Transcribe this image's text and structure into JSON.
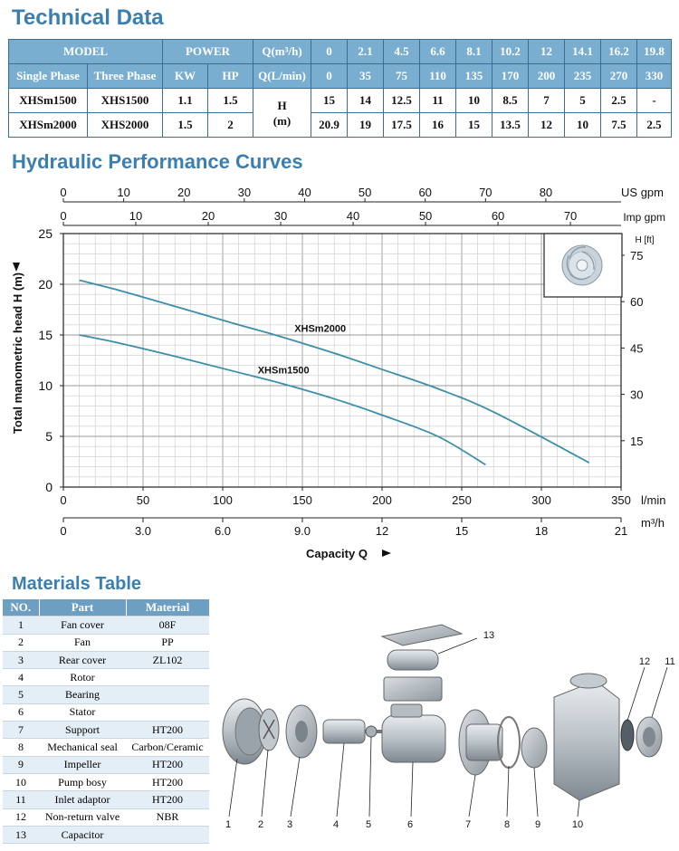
{
  "tech": {
    "title": "Technical Data",
    "header1": {
      "model": "MODEL",
      "power": "POWER",
      "q_m3h": "Q(m³/h)",
      "flows": [
        "0",
        "2.1",
        "4.5",
        "6.6",
        "8.1",
        "10.2",
        "12",
        "14.1",
        "16.2",
        "19.8"
      ]
    },
    "header2": {
      "single": "Single Phase",
      "three": "Three Phase",
      "kw": "KW",
      "hp": "HP",
      "q_lmin": "Q(L/min)",
      "flows": [
        "0",
        "35",
        "75",
        "110",
        "135",
        "170",
        "200",
        "235",
        "270",
        "330"
      ]
    },
    "head_label": "H",
    "head_unit": "(m)",
    "rows": [
      {
        "single": "XHSm1500",
        "three": "XHS1500",
        "kw": "1.1",
        "hp": "1.5",
        "heads": [
          "15",
          "14",
          "12.5",
          "11",
          "10",
          "8.5",
          "7",
          "5",
          "2.5",
          "-"
        ]
      },
      {
        "single": "XHSm2000",
        "three": "XHS2000",
        "kw": "1.5",
        "hp": "2",
        "heads": [
          "20.9",
          "19",
          "17.5",
          "16",
          "15",
          "13.5",
          "12",
          "10",
          "7.5",
          "2.5"
        ]
      }
    ]
  },
  "hydraulic": {
    "title": "Hydraulic Performance Curves"
  },
  "chart_data": {
    "type": "line",
    "title": "",
    "xlabel": "Capacity Q",
    "ylabel": "Total manometric head H (m)",
    "xlim": [
      0,
      350
    ],
    "ylim": [
      0,
      25
    ],
    "grid": true,
    "x_unit": "l/min",
    "x_ticks": [
      "0",
      "50",
      "100",
      "150",
      "200",
      "250",
      "300",
      "350"
    ],
    "y_ticks": [
      "0",
      "5",
      "10",
      "15",
      "20",
      "25"
    ],
    "secondary_axes": {
      "m3h": {
        "unit": "m³/h",
        "ticks": [
          "0",
          "3.0",
          "6.0",
          "9.0",
          "12",
          "15",
          "18",
          "21"
        ]
      },
      "us_gpm": {
        "unit": "US gpm",
        "ticks": [
          "0",
          "10",
          "20",
          "30",
          "40",
          "50",
          "60",
          "70",
          "80"
        ]
      },
      "imp_gpm": {
        "unit": "Imp gpm",
        "ticks": [
          "0",
          "10",
          "20",
          "30",
          "40",
          "50",
          "60",
          "70"
        ]
      },
      "feet": {
        "unit": "H [ft]",
        "ticks": [
          "15",
          "30",
          "45",
          "60",
          "75"
        ]
      }
    },
    "series": [
      {
        "name": "XHSm2000",
        "color": "#3b8fa8",
        "x": [
          10,
          35,
          75,
          110,
          135,
          170,
          200,
          235,
          270,
          330
        ],
        "y": [
          20.4,
          19.4,
          17.6,
          16.0,
          14.9,
          13.2,
          11.6,
          9.7,
          7.4,
          2.4
        ]
      },
      {
        "name": "XHSm1500",
        "color": "#3b8fa8",
        "x": [
          10,
          35,
          75,
          110,
          135,
          170,
          200,
          235,
          265
        ],
        "y": [
          15.0,
          14.2,
          12.7,
          11.3,
          10.3,
          8.7,
          7.1,
          5.0,
          2.2
        ]
      }
    ]
  },
  "materials": {
    "title": "Materials Table",
    "headers": {
      "no": "NO.",
      "part": "Part",
      "material": "Material"
    },
    "rows": [
      {
        "no": "1",
        "part": "Fan cover",
        "material": "08F"
      },
      {
        "no": "2",
        "part": "Fan",
        "material": "PP"
      },
      {
        "no": "3",
        "part": "Rear cover",
        "material": "ZL102"
      },
      {
        "no": "4",
        "part": "Rotor",
        "material": ""
      },
      {
        "no": "5",
        "part": "Bearing",
        "material": ""
      },
      {
        "no": "6",
        "part": "Stator",
        "material": ""
      },
      {
        "no": "7",
        "part": "Support",
        "material": "HT200"
      },
      {
        "no": "8",
        "part": "Mechanical seal",
        "material": "Carbon/Ceramic"
      },
      {
        "no": "9",
        "part": "Impeller",
        "material": "HT200"
      },
      {
        "no": "10",
        "part": "Pump bosy",
        "material": "HT200"
      },
      {
        "no": "11",
        "part": "Inlet adaptor",
        "material": "HT200"
      },
      {
        "no": "12",
        "part": "Non-return valve",
        "material": "NBR"
      },
      {
        "no": "13",
        "part": "Capacitor",
        "material": ""
      }
    ]
  },
  "exploded": {
    "labels": [
      "1",
      "2",
      "3",
      "4",
      "5",
      "6",
      "7",
      "8",
      "9",
      "10",
      "11",
      "12",
      "13"
    ]
  }
}
